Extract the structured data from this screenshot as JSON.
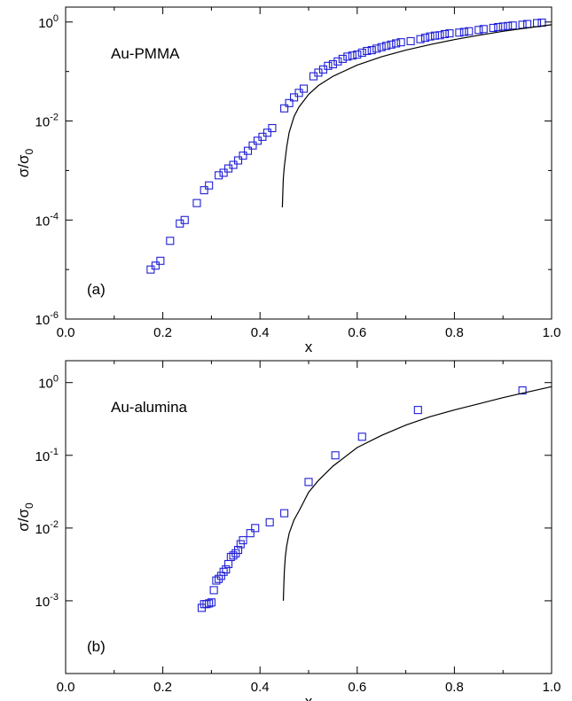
{
  "chart_data": [
    {
      "type": "scatter",
      "annotation": "Au-PMMA",
      "panel_label": "(a)",
      "xlabel": "x",
      "ylabel": "σ/σ",
      "ylabel_sub": "0",
      "xlim": [
        0.0,
        1.0
      ],
      "ylim": [
        1e-06,
        2
      ],
      "y_scale": "log",
      "xticks": [
        "0.0",
        "0.2",
        "0.4",
        "0.6",
        "0.8",
        "1.0"
      ],
      "yticks": [
        {
          "value": 1e-06,
          "base": "10",
          "exp": "-6"
        },
        {
          "value": 0.0001,
          "base": "10",
          "exp": "-4"
        },
        {
          "value": 0.01,
          "base": "10",
          "exp": "-2"
        },
        {
          "value": 1,
          "base": "10",
          "exp": "0"
        }
      ],
      "marker_color": "#1f1fd6",
      "series": [
        {
          "kind": "points",
          "x": [
            0.175,
            0.185,
            0.195,
            0.215,
            0.235,
            0.245,
            0.27,
            0.285,
            0.295,
            0.315,
            0.325,
            0.335,
            0.345,
            0.355,
            0.365,
            0.375,
            0.385,
            0.395,
            0.405,
            0.415,
            0.425,
            0.45,
            0.46,
            0.47,
            0.48,
            0.49,
            0.51,
            0.52,
            0.53,
            0.54,
            0.55,
            0.56,
            0.57,
            0.58,
            0.59,
            0.6,
            0.61,
            0.62,
            0.63,
            0.64,
            0.65,
            0.66,
            0.67,
            0.68,
            0.69,
            0.71,
            0.73,
            0.74,
            0.75,
            0.76,
            0.77,
            0.78,
            0.79,
            0.81,
            0.82,
            0.83,
            0.85,
            0.86,
            0.88,
            0.89,
            0.9,
            0.91,
            0.92,
            0.94,
            0.95,
            0.97,
            0.98
          ],
          "y": [
            1e-05,
            1.2e-05,
            1.5e-05,
            3.8e-05,
            8.5e-05,
            0.0001,
            0.00022,
            0.0004,
            0.0005,
            0.0008,
            0.0009,
            0.0011,
            0.0013,
            0.0016,
            0.002,
            0.0025,
            0.0032,
            0.004,
            0.0048,
            0.0058,
            0.0072,
            0.018,
            0.023,
            0.03,
            0.037,
            0.045,
            0.08,
            0.095,
            0.11,
            0.13,
            0.14,
            0.16,
            0.18,
            0.2,
            0.21,
            0.22,
            0.24,
            0.26,
            0.27,
            0.29,
            0.31,
            0.33,
            0.35,
            0.37,
            0.39,
            0.41,
            0.45,
            0.48,
            0.51,
            0.53,
            0.54,
            0.57,
            0.59,
            0.61,
            0.63,
            0.65,
            0.69,
            0.72,
            0.76,
            0.79,
            0.81,
            0.83,
            0.85,
            0.88,
            0.91,
            0.95,
            0.97
          ]
        },
        {
          "kind": "line",
          "x": [
            0.446,
            0.447,
            0.448,
            0.45,
            0.455,
            0.46,
            0.47,
            0.48,
            0.5,
            0.52,
            0.55,
            0.6,
            0.65,
            0.7,
            0.75,
            0.8,
            0.85,
            0.9,
            0.95,
            1.0
          ],
          "y": [
            0.00018,
            0.0004,
            0.0007,
            0.0012,
            0.003,
            0.0059,
            0.0123,
            0.019,
            0.0345,
            0.052,
            0.08,
            0.135,
            0.198,
            0.27,
            0.35,
            0.44,
            0.54,
            0.65,
            0.76,
            0.88
          ]
        }
      ]
    },
    {
      "type": "scatter",
      "annotation": "Au-alumina",
      "panel_label": "(b)",
      "xlabel": "x",
      "ylabel": "σ/σ",
      "ylabel_sub": "0",
      "xlim": [
        0.0,
        1.0
      ],
      "ylim": [
        0.0001,
        2
      ],
      "y_scale": "log",
      "xticks": [
        "0.0",
        "0.2",
        "0.4",
        "0.6",
        "0.8",
        "1.0"
      ],
      "yticks": [
        {
          "value": 0.001,
          "base": "10",
          "exp": "-3"
        },
        {
          "value": 0.01,
          "base": "10",
          "exp": "-2"
        },
        {
          "value": 0.1,
          "base": "10",
          "exp": "-1"
        },
        {
          "value": 1,
          "base": "10",
          "exp": "0"
        }
      ],
      "marker_color": "#1f1fd6",
      "series": [
        {
          "kind": "points",
          "x": [
            0.28,
            0.285,
            0.29,
            0.295,
            0.3,
            0.305,
            0.31,
            0.315,
            0.32,
            0.325,
            0.33,
            0.335,
            0.34,
            0.345,
            0.35,
            0.355,
            0.36,
            0.365,
            0.38,
            0.39,
            0.42,
            0.45,
            0.5,
            0.555,
            0.61,
            0.725,
            0.94
          ],
          "y": [
            0.0008,
            0.0009,
            0.0009,
            0.00092,
            0.00095,
            0.0014,
            0.0019,
            0.002,
            0.0022,
            0.0025,
            0.0027,
            0.0032,
            0.004,
            0.0042,
            0.0045,
            0.005,
            0.006,
            0.0068,
            0.0085,
            0.01,
            0.012,
            0.016,
            0.043,
            0.1,
            0.18,
            0.42,
            0.78
          ]
        },
        {
          "kind": "line",
          "x": [
            0.448,
            0.449,
            0.45,
            0.452,
            0.455,
            0.46,
            0.47,
            0.48,
            0.5,
            0.52,
            0.55,
            0.6,
            0.65,
            0.7,
            0.75,
            0.8,
            0.85,
            0.9,
            0.95,
            1.0
          ],
          "y": [
            0.001,
            0.0017,
            0.0025,
            0.004,
            0.0057,
            0.0085,
            0.013,
            0.017,
            0.031,
            0.045,
            0.071,
            0.128,
            0.188,
            0.26,
            0.34,
            0.42,
            0.51,
            0.62,
            0.74,
            0.88
          ]
        }
      ]
    }
  ]
}
